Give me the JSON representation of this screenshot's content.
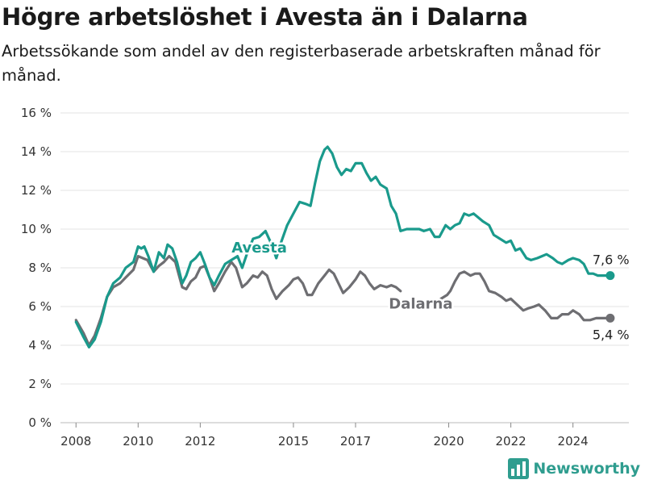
{
  "header": {
    "title": "Högre arbetslöshet i Avesta än i Dalarna",
    "subtitle": "Arbetssökande som andel av den registerbaserade arbetskraften månad för månad."
  },
  "brand": {
    "name": "Newsworthy",
    "icon": "newsworthy-logo-icon",
    "color": "#2f9d8f"
  },
  "colors": {
    "avesta": "#1a9a8c",
    "dalarna": "#6e6e72",
    "grid": "#e3e3e3",
    "axis": "#bbbbbb"
  },
  "chart_data": {
    "type": "line",
    "title": "Högre arbetslöshet i Avesta än i Dalarna",
    "xlabel": "",
    "ylabel": "",
    "xlim": [
      2007.5,
      2025.8
    ],
    "ylim": [
      0,
      16
    ],
    "y_ticks": [
      0,
      2,
      4,
      6,
      8,
      10,
      12,
      14,
      16
    ],
    "y_tick_labels": [
      "0 %",
      "2 %",
      "4 %",
      "6 %",
      "8 %",
      "10 %",
      "12 %",
      "14 %",
      "16 %"
    ],
    "x_ticks": [
      2008,
      2010,
      2012,
      2015,
      2017,
      2020,
      2022,
      2024
    ],
    "x_tick_labels": [
      "2008",
      "2010",
      "2012",
      "2015",
      "2017",
      "2020",
      "2022",
      "2024"
    ],
    "grid": "horizontal",
    "series": [
      {
        "name": "Avesta",
        "color": "#1a9a8c",
        "end_label": "7,6 %",
        "points": [
          [
            2008.0,
            5.2
          ],
          [
            2008.25,
            4.4
          ],
          [
            2008.42,
            3.9
          ],
          [
            2008.6,
            4.3
          ],
          [
            2008.8,
            5.2
          ],
          [
            2009.0,
            6.5
          ],
          [
            2009.2,
            7.2
          ],
          [
            2009.42,
            7.5
          ],
          [
            2009.6,
            8.0
          ],
          [
            2009.85,
            8.3
          ],
          [
            2010.0,
            9.1
          ],
          [
            2010.1,
            9.0
          ],
          [
            2010.2,
            9.1
          ],
          [
            2010.33,
            8.6
          ],
          [
            2010.5,
            7.8
          ],
          [
            2010.67,
            8.8
          ],
          [
            2010.83,
            8.5
          ],
          [
            2010.95,
            9.2
          ],
          [
            2011.1,
            9.0
          ],
          [
            2011.25,
            8.3
          ],
          [
            2011.42,
            7.2
          ],
          [
            2011.55,
            7.6
          ],
          [
            2011.7,
            8.3
          ],
          [
            2011.85,
            8.5
          ],
          [
            2012.0,
            8.8
          ],
          [
            2012.15,
            8.2
          ],
          [
            2012.3,
            7.5
          ],
          [
            2012.45,
            7.1
          ],
          [
            2012.6,
            7.6
          ],
          [
            2012.8,
            8.2
          ],
          [
            2013.0,
            8.4
          ],
          [
            2013.2,
            8.6
          ],
          [
            2013.35,
            8.0
          ],
          [
            2013.5,
            8.7
          ],
          [
            2013.7,
            9.5
          ],
          [
            2013.9,
            9.6
          ],
          [
            2014.1,
            9.9
          ],
          [
            2014.3,
            9.2
          ],
          [
            2014.45,
            8.5
          ],
          [
            2014.6,
            9.3
          ],
          [
            2014.8,
            10.2
          ],
          [
            2015.0,
            10.8
          ],
          [
            2015.2,
            11.4
          ],
          [
            2015.4,
            11.3
          ],
          [
            2015.55,
            11.2
          ],
          [
            2015.7,
            12.4
          ],
          [
            2015.85,
            13.5
          ],
          [
            2016.0,
            14.1
          ],
          [
            2016.1,
            14.25
          ],
          [
            2016.25,
            13.9
          ],
          [
            2016.4,
            13.2
          ],
          [
            2016.55,
            12.8
          ],
          [
            2016.7,
            13.1
          ],
          [
            2016.85,
            13.0
          ],
          [
            2017.0,
            13.4
          ],
          [
            2017.2,
            13.4
          ],
          [
            2017.35,
            12.9
          ],
          [
            2017.5,
            12.5
          ],
          [
            2017.65,
            12.7
          ],
          [
            2017.8,
            12.3
          ],
          [
            2018.0,
            12.1
          ],
          [
            2018.15,
            11.2
          ],
          [
            2018.3,
            10.8
          ],
          [
            2018.45,
            9.9
          ],
          [
            2018.65,
            10.0
          ],
          [
            2018.85,
            10.0
          ],
          [
            2019.05,
            10.0
          ],
          [
            2019.2,
            9.9
          ],
          [
            2019.4,
            10.0
          ],
          [
            2019.55,
            9.6
          ],
          [
            2019.7,
            9.6
          ],
          [
            2019.9,
            10.2
          ],
          [
            2020.05,
            10.0
          ],
          [
            2020.2,
            10.2
          ],
          [
            2020.35,
            10.3
          ],
          [
            2020.5,
            10.8
          ],
          [
            2020.65,
            10.7
          ],
          [
            2020.8,
            10.8
          ],
          [
            2020.95,
            10.6
          ],
          [
            2021.1,
            10.4
          ],
          [
            2021.3,
            10.2
          ],
          [
            2021.45,
            9.7
          ],
          [
            2021.65,
            9.5
          ],
          [
            2021.85,
            9.3
          ],
          [
            2022.0,
            9.4
          ],
          [
            2022.15,
            8.9
          ],
          [
            2022.3,
            9.0
          ],
          [
            2022.5,
            8.5
          ],
          [
            2022.65,
            8.4
          ],
          [
            2022.85,
            8.5
          ],
          [
            2023.0,
            8.6
          ],
          [
            2023.15,
            8.7
          ],
          [
            2023.35,
            8.5
          ],
          [
            2023.5,
            8.3
          ],
          [
            2023.65,
            8.2
          ],
          [
            2023.85,
            8.4
          ],
          [
            2024.0,
            8.5
          ],
          [
            2024.2,
            8.4
          ],
          [
            2024.35,
            8.2
          ],
          [
            2024.5,
            7.7
          ],
          [
            2024.65,
            7.7
          ],
          [
            2024.8,
            7.6
          ],
          [
            2025.0,
            7.6
          ],
          [
            2025.2,
            7.6
          ]
        ]
      },
      {
        "name": "Dalarna",
        "color": "#6e6e72",
        "end_label": "5,4 %",
        "points": [
          [
            2008.0,
            5.3
          ],
          [
            2008.25,
            4.6
          ],
          [
            2008.42,
            4.0
          ],
          [
            2008.6,
            4.5
          ],
          [
            2008.8,
            5.4
          ],
          [
            2009.0,
            6.5
          ],
          [
            2009.2,
            7.0
          ],
          [
            2009.42,
            7.2
          ],
          [
            2009.6,
            7.5
          ],
          [
            2009.85,
            7.9
          ],
          [
            2010.0,
            8.6
          ],
          [
            2010.15,
            8.5
          ],
          [
            2010.3,
            8.4
          ],
          [
            2010.5,
            7.8
          ],
          [
            2010.67,
            8.1
          ],
          [
            2010.83,
            8.3
          ],
          [
            2011.0,
            8.6
          ],
          [
            2011.2,
            8.3
          ],
          [
            2011.42,
            7.0
          ],
          [
            2011.55,
            6.9
          ],
          [
            2011.7,
            7.3
          ],
          [
            2011.85,
            7.5
          ],
          [
            2012.0,
            8.0
          ],
          [
            2012.15,
            8.1
          ],
          [
            2012.3,
            7.5
          ],
          [
            2012.45,
            6.8
          ],
          [
            2012.6,
            7.2
          ],
          [
            2012.8,
            7.8
          ],
          [
            2013.0,
            8.3
          ],
          [
            2013.15,
            8.0
          ],
          [
            2013.35,
            7.0
          ],
          [
            2013.5,
            7.2
          ],
          [
            2013.7,
            7.6
          ],
          [
            2013.85,
            7.5
          ],
          [
            2014.0,
            7.8
          ],
          [
            2014.15,
            7.6
          ],
          [
            2014.3,
            6.9
          ],
          [
            2014.45,
            6.4
          ],
          [
            2014.65,
            6.8
          ],
          [
            2014.85,
            7.1
          ],
          [
            2015.0,
            7.4
          ],
          [
            2015.15,
            7.5
          ],
          [
            2015.3,
            7.2
          ],
          [
            2015.45,
            6.6
          ],
          [
            2015.6,
            6.6
          ],
          [
            2015.8,
            7.2
          ],
          [
            2016.0,
            7.6
          ],
          [
            2016.15,
            7.9
          ],
          [
            2016.3,
            7.7
          ],
          [
            2016.45,
            7.2
          ],
          [
            2016.6,
            6.7
          ],
          [
            2016.8,
            7.0
          ],
          [
            2017.0,
            7.4
          ],
          [
            2017.15,
            7.8
          ],
          [
            2017.3,
            7.6
          ],
          [
            2017.45,
            7.2
          ],
          [
            2017.6,
            6.9
          ],
          [
            2017.8,
            7.1
          ],
          [
            2018.0,
            7.0
          ],
          [
            2018.15,
            7.1
          ],
          [
            2018.3,
            7.0
          ],
          [
            2018.45,
            6.8
          ],
          null,
          [
            2019.75,
            6.4
          ],
          [
            2019.95,
            6.6
          ],
          [
            2020.05,
            6.8
          ],
          [
            2020.2,
            7.3
          ],
          [
            2020.35,
            7.7
          ],
          [
            2020.5,
            7.8
          ],
          [
            2020.7,
            7.6
          ],
          [
            2020.85,
            7.7
          ],
          [
            2021.0,
            7.7
          ],
          [
            2021.15,
            7.3
          ],
          [
            2021.3,
            6.8
          ],
          [
            2021.5,
            6.7
          ],
          [
            2021.7,
            6.5
          ],
          [
            2021.85,
            6.3
          ],
          [
            2022.0,
            6.4
          ],
          [
            2022.2,
            6.1
          ],
          [
            2022.4,
            5.8
          ],
          [
            2022.55,
            5.9
          ],
          [
            2022.75,
            6.0
          ],
          [
            2022.9,
            6.1
          ],
          [
            2023.1,
            5.8
          ],
          [
            2023.3,
            5.4
          ],
          [
            2023.5,
            5.4
          ],
          [
            2023.65,
            5.6
          ],
          [
            2023.85,
            5.6
          ],
          [
            2024.0,
            5.8
          ],
          [
            2024.2,
            5.6
          ],
          [
            2024.35,
            5.3
          ],
          [
            2024.55,
            5.3
          ],
          [
            2024.75,
            5.4
          ],
          [
            2025.0,
            5.4
          ],
          [
            2025.2,
            5.4
          ]
        ]
      }
    ],
    "annotations": [
      {
        "series": "Avesta",
        "text": "Avesta",
        "x": 2013.9,
        "y": 8.8
      },
      {
        "series": "Dalarna",
        "text": "Dalarna",
        "x": 2019.1,
        "y": 5.9
      }
    ]
  }
}
